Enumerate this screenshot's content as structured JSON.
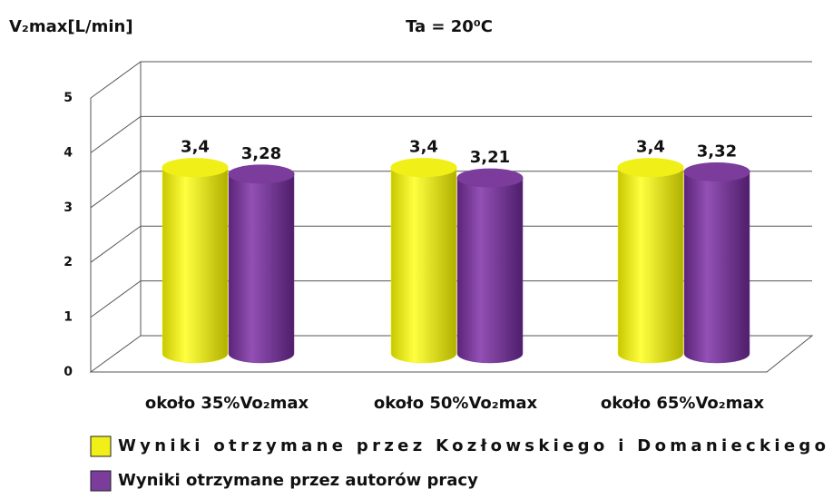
{
  "chart_data": {
    "type": "bar3d",
    "title": "Ta = 20⁰C",
    "y_label": "V₂max[L/min]",
    "categories": [
      "około 35%Vo₂max",
      "około 50%Vo₂max",
      "około 65%Vo₂max"
    ],
    "series": [
      {
        "name": "Wyniki otrzymane przez Kozłowskiego i Domanieckiego",
        "color": "#f0f018",
        "values": [
          3.4,
          3.4,
          3.4
        ],
        "value_labels": [
          "3,4",
          "3,4",
          "3,4"
        ]
      },
      {
        "name": "Wyniki otrzymane przez autorów pracy",
        "color": "#7b3c9c",
        "values": [
          3.28,
          3.21,
          3.32
        ],
        "value_labels": [
          "3,28",
          "3,21",
          "3,32"
        ]
      }
    ],
    "ylim": [
      0,
      5
    ],
    "yticks": [
      0,
      1,
      2,
      3,
      4,
      5
    ],
    "grid": true,
    "legend": "bottom"
  }
}
